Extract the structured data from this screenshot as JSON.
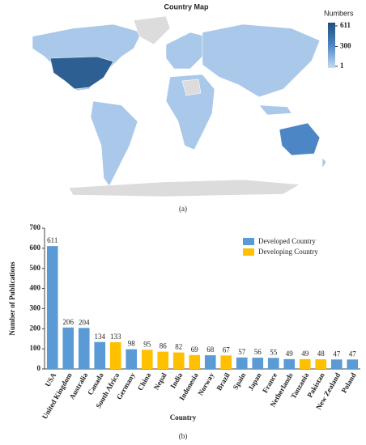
{
  "map": {
    "title": "Country Map",
    "caption": "(a)",
    "legend": {
      "title": "Numbers",
      "range": [
        1,
        611
      ],
      "ticks": [
        611,
        300,
        1
      ]
    }
  },
  "chart_data": {
    "type": "bar",
    "caption": "(b)",
    "x_label": "Country",
    "y_label": "Number of Publications",
    "categories": [
      "USA",
      "United Kingdom",
      "Australia",
      "Canada",
      "South Africa",
      "Germany",
      "China",
      "Nepal",
      "India",
      "Indonesia",
      "Norway",
      "Brazil",
      "Spain",
      "Japan",
      "France",
      "Netherlands",
      "Tanzania",
      "Pakistan",
      "New Zealand",
      "Poland"
    ],
    "series": [
      {
        "name": "Developed Country",
        "color": "#5b9bd5",
        "values": [
          611,
          206,
          204,
          134,
          null,
          98,
          null,
          null,
          null,
          null,
          68,
          null,
          57,
          56,
          55,
          49,
          null,
          null,
          47,
          47
        ]
      },
      {
        "name": "Developing Country",
        "color": "#ffc000",
        "values": [
          null,
          null,
          null,
          null,
          133,
          null,
          95,
          86,
          82,
          69,
          null,
          67,
          null,
          null,
          null,
          null,
          49,
          48,
          null,
          null
        ]
      }
    ],
    "ylim": [
      0,
      700
    ],
    "yticks": [
      0,
      100,
      200,
      300,
      400,
      500,
      600,
      700
    ],
    "legend_position": "upper right"
  }
}
